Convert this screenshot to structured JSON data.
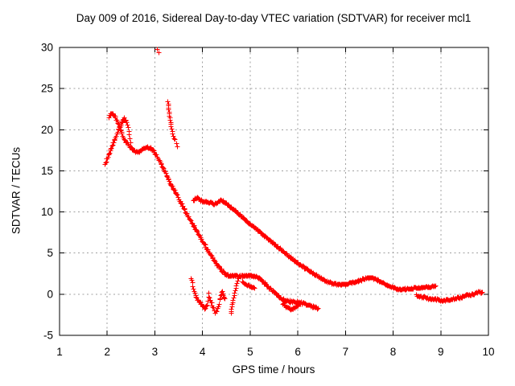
{
  "title": "Day 009 of 2016, Sidereal Day-to-day VTEC variation (SDTVAR) for receiver mcl1",
  "colors": {
    "marker": "#ff0000",
    "axis": "#000000",
    "grid": "#a0a0a0",
    "background": "#ffffff",
    "text": "#000000"
  },
  "chart_data": {
    "type": "scatter",
    "title": "Day 009 of 2016, Sidereal Day-to-day VTEC variation (SDTVAR) for receiver mcl1",
    "xlabel": "GPS time / hours",
    "ylabel": "SDTVAR / TECUs",
    "xlim": [
      1,
      10
    ],
    "ylim": [
      -5,
      30
    ],
    "x_ticks": [
      1,
      2,
      3,
      4,
      5,
      6,
      7,
      8,
      9,
      10
    ],
    "y_ticks": [
      -5,
      0,
      5,
      10,
      15,
      20,
      25,
      30
    ],
    "grid": true,
    "legend": "none",
    "marker": "plus",
    "series": [
      {
        "name": "main-descent",
        "mode": "dense",
        "step": 0.013,
        "jitter": 0.12,
        "points": [
          [
            2.03,
            21.6
          ],
          [
            2.07,
            22.0
          ],
          [
            2.12,
            21.95
          ],
          [
            2.17,
            21.4
          ],
          [
            2.22,
            20.8
          ],
          [
            2.28,
            19.9
          ],
          [
            2.35,
            18.9
          ],
          [
            2.42,
            18.35
          ],
          [
            2.5,
            17.75
          ],
          [
            2.58,
            17.3
          ],
          [
            2.65,
            17.35
          ],
          [
            2.72,
            17.6
          ],
          [
            2.82,
            17.95
          ],
          [
            2.9,
            17.85
          ],
          [
            2.97,
            17.5
          ],
          [
            3.05,
            16.7
          ],
          [
            3.12,
            16.0
          ],
          [
            3.2,
            15.0
          ],
          [
            3.3,
            13.7
          ],
          [
            3.4,
            12.7
          ],
          [
            3.5,
            11.6
          ],
          [
            3.6,
            10.5
          ],
          [
            3.7,
            9.4
          ],
          [
            3.8,
            8.4
          ],
          [
            3.9,
            7.4
          ],
          [
            4.0,
            6.4
          ],
          [
            4.1,
            5.4
          ],
          [
            4.2,
            4.5
          ],
          [
            4.3,
            3.6
          ],
          [
            4.4,
            2.9
          ],
          [
            4.48,
            2.45
          ],
          [
            4.55,
            2.25
          ],
          [
            4.65,
            2.3
          ],
          [
            4.75,
            2.2
          ],
          [
            4.85,
            2.25
          ],
          [
            4.95,
            2.3
          ],
          [
            5.05,
            2.25
          ],
          [
            5.15,
            2.15
          ],
          [
            5.22,
            1.8
          ],
          [
            5.3,
            1.3
          ],
          [
            5.4,
            0.75
          ],
          [
            5.5,
            0.3
          ],
          [
            5.6,
            -0.25
          ],
          [
            5.7,
            -0.65
          ],
          [
            5.8,
            -0.85
          ],
          [
            5.95,
            -0.9
          ],
          [
            6.05,
            -1.0
          ],
          [
            6.2,
            -1.3
          ],
          [
            6.35,
            -1.6
          ],
          [
            6.42,
            -1.7
          ]
        ]
      },
      {
        "name": "rising-peak",
        "mode": "dense",
        "step": 0.013,
        "jitter": 0.12,
        "points": [
          [
            1.95,
            15.8
          ],
          [
            2.0,
            16.6
          ],
          [
            2.06,
            17.5
          ],
          [
            2.12,
            18.4
          ],
          [
            2.18,
            19.3
          ],
          [
            2.24,
            20.1
          ],
          [
            2.3,
            20.9
          ],
          [
            2.35,
            21.4
          ],
          [
            2.39,
            21.1
          ],
          [
            2.43,
            20.3
          ],
          [
            2.46,
            19.4
          ],
          [
            2.49,
            18.5
          ]
        ]
      },
      {
        "name": "upper-branch-descent",
        "mode": "dense",
        "step": 0.014,
        "jitter": 0.1,
        "points": [
          [
            3.8,
            11.5
          ],
          [
            3.88,
            11.75
          ],
          [
            3.96,
            11.4
          ],
          [
            4.05,
            11.3
          ],
          [
            4.14,
            11.15
          ],
          [
            4.23,
            11.0
          ],
          [
            4.31,
            11.15
          ],
          [
            4.38,
            11.5
          ],
          [
            4.45,
            11.25
          ],
          [
            4.55,
            10.75
          ],
          [
            4.66,
            10.3
          ],
          [
            4.78,
            9.65
          ],
          [
            4.9,
            9.0
          ],
          [
            5.05,
            8.3
          ],
          [
            5.2,
            7.6
          ],
          [
            5.35,
            6.85
          ],
          [
            5.5,
            6.1
          ],
          [
            5.65,
            5.4
          ],
          [
            5.8,
            4.7
          ],
          [
            5.95,
            4.0
          ],
          [
            6.1,
            3.4
          ],
          [
            6.25,
            2.8
          ],
          [
            6.4,
            2.25
          ],
          [
            6.55,
            1.75
          ],
          [
            6.7,
            1.4
          ],
          [
            6.85,
            1.2
          ],
          [
            7.0,
            1.25
          ],
          [
            7.15,
            1.45
          ],
          [
            7.3,
            1.7
          ],
          [
            7.42,
            1.95
          ],
          [
            7.52,
            2.05
          ],
          [
            7.62,
            1.9
          ],
          [
            7.75,
            1.5
          ],
          [
            7.88,
            1.1
          ],
          [
            8.0,
            0.8
          ],
          [
            8.12,
            0.6
          ],
          [
            8.25,
            0.7
          ],
          [
            8.4,
            0.75
          ],
          [
            8.55,
            0.8
          ],
          [
            8.7,
            0.9
          ],
          [
            8.82,
            1.0
          ],
          [
            8.88,
            1.05
          ]
        ]
      },
      {
        "name": "low-flat-tail",
        "mode": "dense",
        "step": 0.014,
        "jitter": 0.13,
        "points": [
          [
            8.48,
            -0.1
          ],
          [
            8.6,
            -0.3
          ],
          [
            8.72,
            -0.45
          ],
          [
            8.85,
            -0.6
          ],
          [
            9.0,
            -0.7
          ],
          [
            9.1,
            -0.72
          ],
          [
            9.2,
            -0.62
          ],
          [
            9.3,
            -0.5
          ],
          [
            9.42,
            -0.35
          ],
          [
            9.55,
            -0.15
          ],
          [
            9.67,
            0.05
          ],
          [
            9.78,
            0.25
          ],
          [
            9.87,
            0.25
          ]
        ]
      },
      {
        "name": "noise-cluster-hour4",
        "mode": "dense",
        "step": 0.012,
        "jitter": 0.16,
        "points": [
          [
            3.76,
            1.9
          ],
          [
            3.79,
            1.1
          ],
          [
            3.82,
            0.4
          ],
          [
            3.86,
            -0.2
          ],
          [
            3.9,
            -0.7
          ],
          [
            3.95,
            -1.1
          ],
          [
            4.0,
            -1.4
          ],
          [
            4.05,
            -1.7
          ],
          [
            4.09,
            -1.25
          ],
          [
            4.13,
            0.05
          ],
          [
            4.17,
            -0.85
          ],
          [
            4.21,
            -1.5
          ],
          [
            4.26,
            -2.2
          ],
          [
            4.3,
            -1.95
          ],
          [
            4.34,
            -1.1
          ],
          [
            4.38,
            0.0
          ],
          [
            4.41,
            0.35
          ],
          [
            4.44,
            -0.25
          ],
          [
            4.46,
            -0.55
          ]
        ]
      },
      {
        "name": "dip-segment",
        "mode": "dense",
        "step": 0.013,
        "jitter": 0.1,
        "points": [
          [
            5.68,
            -1.1
          ],
          [
            5.76,
            -1.5
          ],
          [
            5.85,
            -1.8
          ],
          [
            5.93,
            -1.6
          ],
          [
            6.0,
            -1.3
          ],
          [
            6.05,
            -1.15
          ]
        ]
      },
      {
        "name": "sub-plateau-segment",
        "mode": "dense",
        "step": 0.013,
        "jitter": 0.08,
        "points": [
          [
            4.83,
            1.5
          ],
          [
            4.92,
            1.2
          ],
          [
            5.0,
            0.95
          ],
          [
            5.08,
            0.8
          ]
        ]
      },
      {
        "name": "vertical-streak-hour3",
        "mode": "points",
        "points": [
          [
            3.268,
            23.45
          ],
          [
            3.272,
            23.2
          ],
          [
            3.277,
            22.95
          ],
          [
            3.282,
            22.7
          ],
          [
            3.287,
            22.45
          ],
          [
            3.292,
            22.2
          ],
          [
            3.298,
            21.95
          ],
          [
            3.304,
            21.7
          ],
          [
            3.31,
            21.45
          ],
          [
            3.316,
            21.2
          ],
          [
            3.323,
            20.95
          ],
          [
            3.33,
            20.7
          ],
          [
            3.338,
            20.4
          ],
          [
            3.347,
            20.1
          ],
          [
            3.357,
            19.8
          ],
          [
            3.368,
            19.5
          ],
          [
            3.38,
            19.2
          ],
          [
            3.393,
            18.95
          ],
          [
            3.42,
            18.85
          ],
          [
            3.44,
            18.35
          ],
          [
            3.465,
            17.95
          ]
        ]
      },
      {
        "name": "vertical-streak-hour4p6",
        "mode": "points",
        "points": [
          [
            4.595,
            -2.3
          ],
          [
            4.6,
            -2.05
          ],
          [
            4.605,
            -1.78
          ],
          [
            4.612,
            -1.5
          ],
          [
            4.62,
            -1.22
          ],
          [
            4.628,
            -0.95
          ],
          [
            4.637,
            -0.68
          ],
          [
            4.646,
            -0.4
          ],
          [
            4.656,
            -0.12
          ],
          [
            4.667,
            0.16
          ],
          [
            4.678,
            0.45
          ],
          [
            4.69,
            0.74
          ],
          [
            4.703,
            1.03
          ],
          [
            4.717,
            1.33
          ],
          [
            4.732,
            1.63
          ],
          [
            4.748,
            1.95
          ]
        ]
      },
      {
        "name": "top-outlier",
        "mode": "points",
        "points": [
          [
            3.05,
            29.85
          ],
          [
            3.072,
            29.45
          ]
        ]
      }
    ]
  }
}
